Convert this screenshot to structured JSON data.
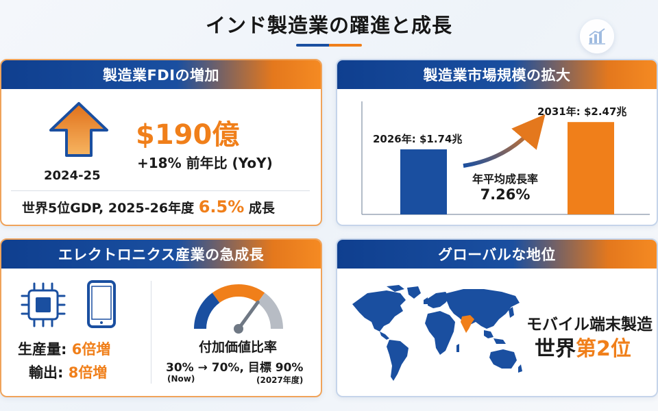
{
  "title": "インド製造業の躍進と成長",
  "colors": {
    "blue": "#1a4fa0",
    "orange": "#f07f1a",
    "dark": "#1a1a1a"
  },
  "icons": [
    "chart-icon",
    "up-arrow-icon",
    "microchip-icon",
    "smartphone-icon",
    "gauge-icon",
    "growth-arrow-icon",
    "world-map-icon"
  ],
  "fdi": {
    "header": "製造業FDIの増加",
    "amount": "$190億",
    "yoy": "+18% 前年比 (YoY)",
    "period": "2024-25",
    "gdp_prefix": "世界5位GDP, 2025-26年度",
    "gdp_value": "6.5%",
    "gdp_suffix": "成長"
  },
  "market": {
    "header": "製造業市場規模の拡大",
    "cagr_label": "年平均成長率",
    "cagr_value": "7.26%"
  },
  "chart_data": {
    "type": "bar",
    "categories": [
      "2026年",
      "2031年"
    ],
    "values": [
      1.74,
      2.47
    ],
    "value_labels": [
      "2026年: $1.74兆",
      "2031年: $2.47兆"
    ],
    "unit": "兆ドル",
    "colors": [
      "#1a4fa0",
      "#f07f1a"
    ],
    "ylim": [
      0,
      2.6
    ],
    "annotation": "年平均成長率 7.26%"
  },
  "electronics": {
    "header": "エレクトロニクス産業の急成長",
    "production_label": "生産量:",
    "production_value": "6倍増",
    "export_label": "輸出:",
    "export_value": "8倍増",
    "ratio_title": "付加価値比率",
    "ratio_text": "30% → 70%, 目標 90%",
    "ratio_now": "(Now)",
    "ratio_target_year": "(2027年度)",
    "gauge": {
      "current": 0.3,
      "mid": 0.7,
      "target": 0.9
    }
  },
  "global": {
    "header": "グローバルな地位",
    "rank_line1": "モバイル端末製造",
    "rank_prefix": "世界",
    "rank_value": "第2位"
  }
}
